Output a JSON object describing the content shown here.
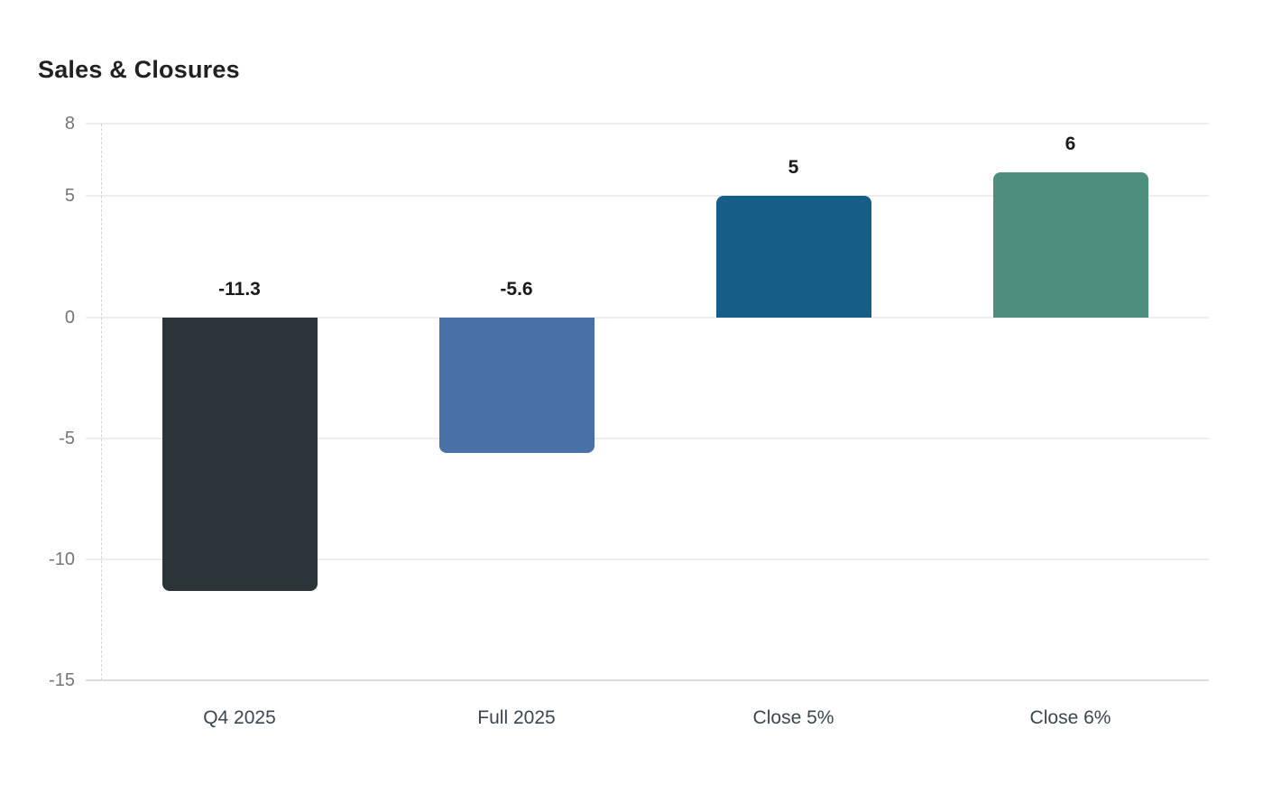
{
  "header": {
    "title": "Sales & Closures"
  },
  "chart_data": {
    "type": "bar",
    "title": "Sales & Closures",
    "categories": [
      "Q4 2025",
      "Full 2025",
      "Close 5%",
      "Close 6%"
    ],
    "values": [
      -11.3,
      -5.6,
      5,
      6
    ],
    "value_labels": [
      "-11.3",
      "-5.6",
      "5",
      "6"
    ],
    "bar_colors": [
      "#2b3539",
      "#4a70a8",
      "#175e87",
      "#4e8e7d"
    ],
    "xlabel": "",
    "ylabel": "",
    "ylim": [
      -15,
      8
    ],
    "yticks": [
      8,
      5,
      0,
      -5,
      -10,
      -15
    ],
    "grid": "horizontal-gridlines",
    "legend_position": "none",
    "colors": {
      "title_text": "#212121",
      "value_label_text": "#1a1a1a",
      "ytick_text": "#757575",
      "xtick_text": "#3a474f",
      "gridline": "#ededed",
      "baseline": "#dcdcdc",
      "axis_dash": "#d4d4d4"
    }
  }
}
